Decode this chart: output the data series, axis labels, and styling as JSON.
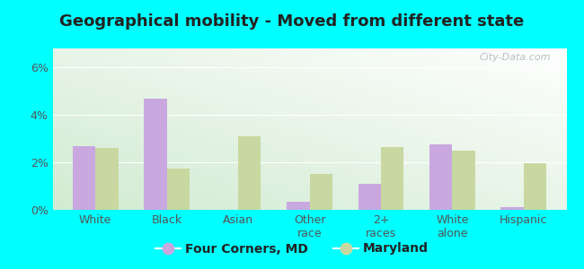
{
  "title": "Geographical mobility - Moved from different state",
  "categories": [
    "White",
    "Black",
    "Asian",
    "Other\nrace",
    "2+\nraces",
    "White\nalone",
    "Hispanic"
  ],
  "four_corners": [
    2.7,
    4.7,
    0.0,
    0.35,
    1.1,
    2.75,
    0.12
  ],
  "maryland": [
    2.6,
    1.75,
    3.1,
    1.5,
    2.65,
    2.5,
    1.95
  ],
  "bar_color_fc": "#c9a8e0",
  "bar_color_md": "#c8d8a0",
  "ylim_max": 6.8,
  "yticks": [
    0,
    2,
    4,
    6
  ],
  "ytick_labels": [
    "0%",
    "2%",
    "4%",
    "6%"
  ],
  "legend_fc": "Four Corners, MD",
  "legend_md": "Maryland",
  "bg_outer": "#00ffff",
  "watermark": "City-Data.com",
  "title_fontsize": 13,
  "tick_fontsize": 9
}
